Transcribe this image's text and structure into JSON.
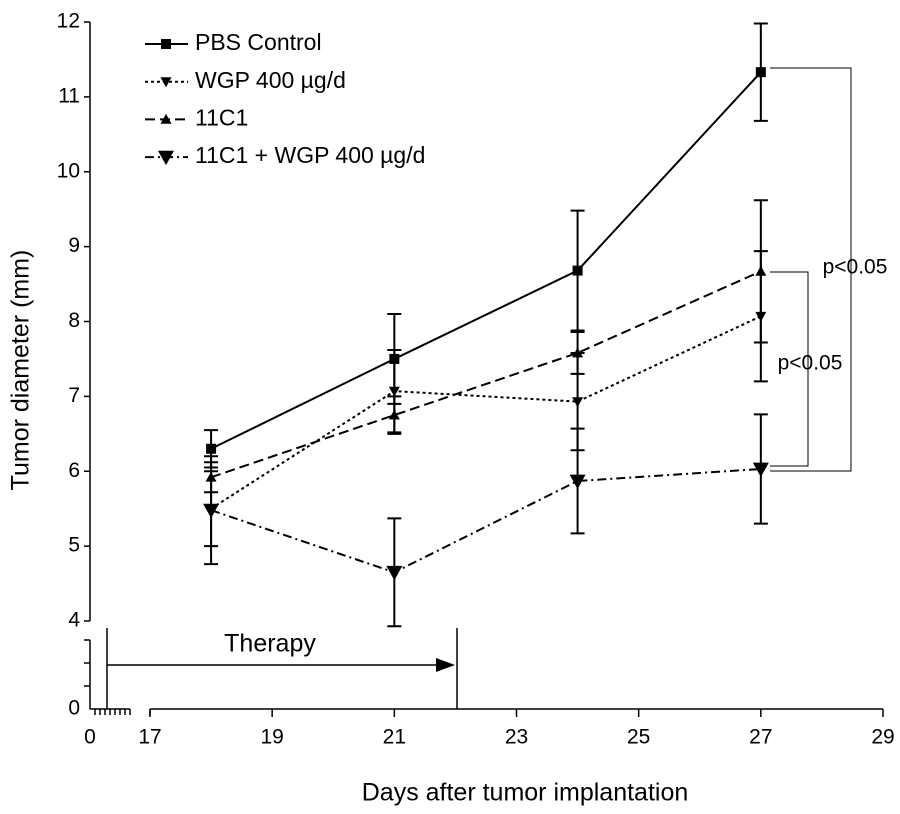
{
  "chart_data": {
    "type": "line",
    "x_label": "Days after tumor implantation",
    "y_label": "Tumor diameter (mm)",
    "x": [
      18,
      21,
      24,
      27
    ],
    "series": [
      {
        "name": "PBS Control",
        "color": "#000000",
        "dash": "none",
        "marker": "square",
        "values": [
          6.3,
          7.5,
          8.68,
          11.33
        ],
        "errors": [
          0.25,
          0.6,
          0.8,
          0.65
        ]
      },
      {
        "name": "WGP 400 µg/d",
        "color": "#000000",
        "dash": "3,3",
        "marker": "down",
        "values": [
          5.5,
          7.07,
          6.93,
          8.07
        ],
        "errors": [
          0.5,
          0.55,
          0.65,
          0.87
        ]
      },
      {
        "name": "11C1",
        "color": "#000000",
        "dash": "10,5",
        "marker": "up",
        "values": [
          5.92,
          6.75,
          7.58,
          8.67
        ],
        "errors": [
          0.2,
          0.25,
          0.28,
          0.95
        ]
      },
      {
        "name": "11C1 + WGP 400 µg/d",
        "color": "#000000",
        "dash": "9,4,2,4",
        "marker": "down-big",
        "values": [
          5.48,
          4.65,
          5.87,
          6.03
        ],
        "errors": [
          0.72,
          0.72,
          0.7,
          0.73
        ]
      }
    ],
    "xlim": [
      17,
      29
    ],
    "xticks": [
      17,
      19,
      21,
      23,
      25,
      27,
      29
    ],
    "ylim": [
      4,
      12
    ],
    "yticks": [
      4,
      5,
      6,
      7,
      8,
      9,
      10,
      11,
      12
    ],
    "x_break_tick": 0,
    "y_break_tick": 0,
    "annotations": [
      "p<0.05",
      "p<0.05",
      "Therapy"
    ],
    "legend": "upper left"
  }
}
